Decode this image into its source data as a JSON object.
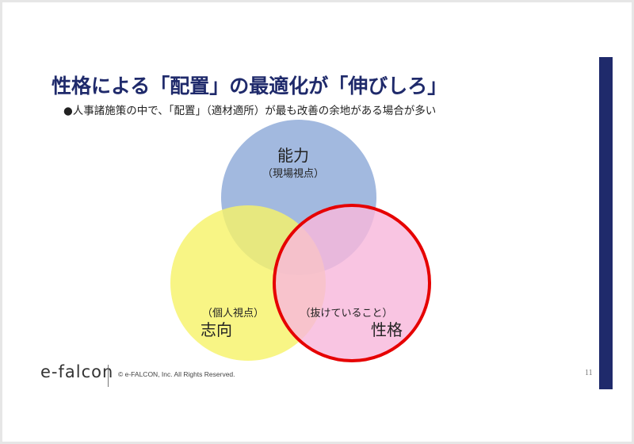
{
  "slide": {
    "title": "性格による「配置」の最適化が「伸びしろ」",
    "bullet": "●人事諸施策の中で、「配置」（適材適所）が最も改善の余地がある場合が多い",
    "page_number": "11"
  },
  "venn": {
    "circles": [
      {
        "label": "能力",
        "sublabel": "（現場視点）",
        "fill": "#8eaad8"
      },
      {
        "label": "志向",
        "sublabel": "（個人視点）",
        "fill": "#f7f36a"
      },
      {
        "label": "性格",
        "fill": "#f8b8dc",
        "outline": "#e60000"
      }
    ],
    "center_label": "（抜けていること）"
  },
  "footer": {
    "logo": "e-falcon",
    "copyright": "© e-FALCON, Inc. All Rights Reserved."
  },
  "colors": {
    "accent": "#1f2a6b",
    "highlight_outline": "#e60000"
  }
}
